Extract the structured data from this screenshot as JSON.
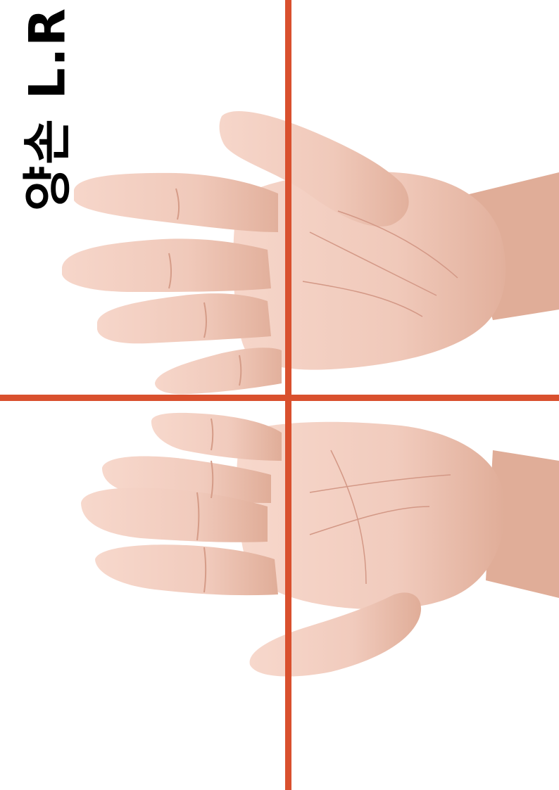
{
  "label": "양손 L.R",
  "colors": {
    "background": "#ffffff",
    "skin": "#f1cdbf",
    "skin_shadow": "#dcaa9a",
    "line": "#d9502e",
    "text": "#000000"
  },
  "icons": [
    "upper-hand-icon",
    "lower-hand-icon"
  ]
}
